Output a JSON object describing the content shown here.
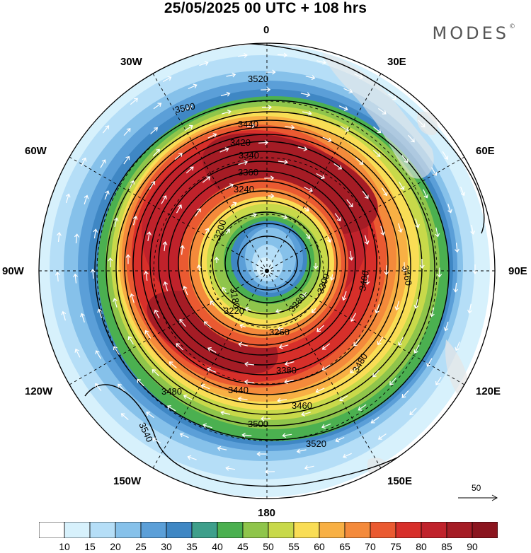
{
  "header": {
    "title": "25/05/2025  00 UTC  + 108 hrs",
    "brand": "MODES"
  },
  "map": {
    "projection": "south-polar-stereographic",
    "longitude_labels": {
      "top": "0",
      "top_right": "30E",
      "upper_right": "60E",
      "right": "90E",
      "lower_right": "120E",
      "bottom_right": "150E",
      "bottom": "180",
      "bottom_left": "150W",
      "lower_left": "120W",
      "left": "90W",
      "upper_left": "60W",
      "top_left": "30W"
    },
    "contour_labels": [
      "3520",
      "3500",
      "3440",
      "3420",
      "3340",
      "3360",
      "3240",
      "3200",
      "3180",
      "3220",
      "3260",
      "3280",
      "3300",
      "3380",
      "3400",
      "3460",
      "3480",
      "3540",
      "3440",
      "3500",
      "3520",
      "3480",
      "3460"
    ],
    "reference_vector": "50"
  },
  "legend": {
    "levels": [
      "10",
      "15",
      "20",
      "25",
      "30",
      "35",
      "40",
      "45",
      "50",
      "55",
      "60",
      "65",
      "70",
      "75",
      "80",
      "85",
      "90"
    ],
    "colors": [
      "#ffffff",
      "#d7f1fc",
      "#b5def7",
      "#86c1ea",
      "#5b9fd8",
      "#3f87c4",
      "#3e9f8b",
      "#4bb050",
      "#8fc54b",
      "#c8d94a",
      "#f9dd55",
      "#f8b044",
      "#f48a3b",
      "#ea5a31",
      "#d72f2a",
      "#c0222b",
      "#a51c25",
      "#8b151f"
    ]
  },
  "colors": {
    "ocean_edge": "#d7f1fc",
    "land": "#e6e6e6"
  }
}
